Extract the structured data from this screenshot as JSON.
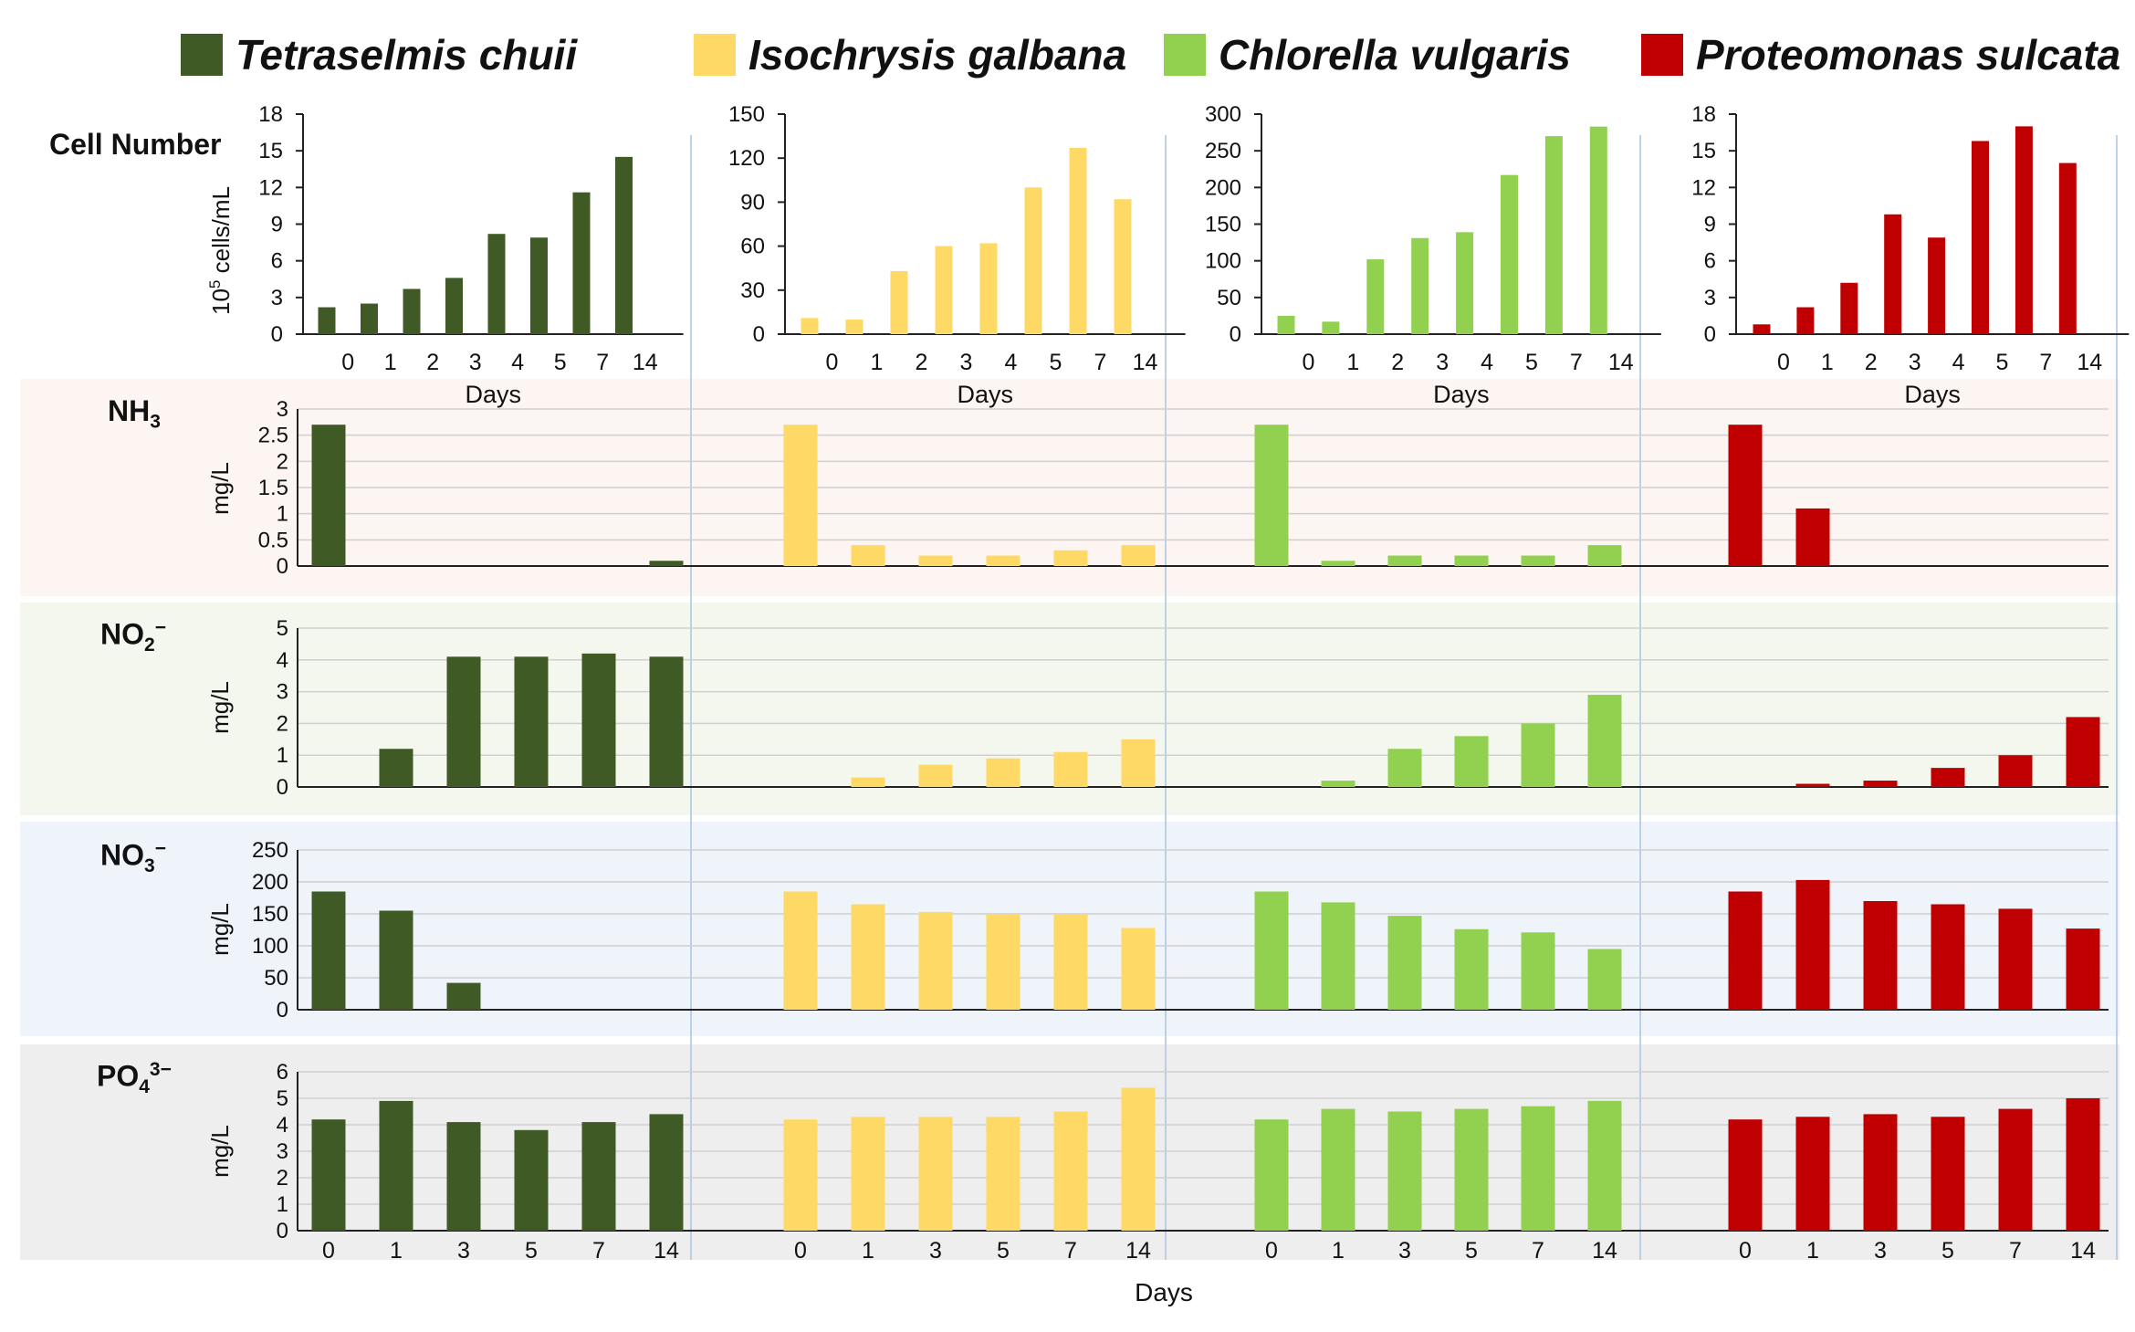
{
  "legend": [
    {
      "name": "Tetraselmis chuii",
      "color": "#3f5a24"
    },
    {
      "name": "Isochrysis galbana",
      "color": "#ffd966"
    },
    {
      "name": "Chlorella vulgaris",
      "color": "#92d050"
    },
    {
      "name": "Proteomonas sulcata",
      "color": "#c00000"
    }
  ],
  "row_titles": {
    "cell": "Cell Number",
    "nh3_main": "NH",
    "nh3_sub": "3",
    "no2_main": "NO",
    "no2_sub": "2",
    "no2_sup": "−",
    "no3_main": "NO",
    "no3_sub": "3",
    "no3_sup": "−",
    "po4_main": "PO",
    "po4_sub": "4",
    "po4_sup": "3−"
  },
  "footer_xlabel": "Days",
  "chart_data": [
    {
      "type": "bar",
      "panel": "cell-number",
      "species": "Tetraselmis chuii",
      "color": "#3f5a24",
      "categories": [
        "",
        "0",
        "1",
        "2",
        "3",
        "4",
        "5",
        "7",
        "14"
      ],
      "values": [
        2.2,
        2.5,
        3.7,
        4.6,
        8.2,
        7.9,
        11.6,
        14.5,
        null
      ],
      "yticks": [
        0,
        3,
        6,
        9,
        12,
        15,
        18
      ],
      "ylim": [
        0,
        18
      ],
      "ylabel_base": "10",
      "ylabel_exp": "5",
      "ylabel_rest": " cells/mL",
      "xlabel": "Days"
    },
    {
      "type": "bar",
      "panel": "cell-number",
      "species": "Isochrysis galbana",
      "color": "#ffd966",
      "categories": [
        "",
        "0",
        "1",
        "2",
        "3",
        "4",
        "5",
        "7",
        "14"
      ],
      "values": [
        11,
        10,
        43,
        60,
        62,
        100,
        127,
        92,
        null
      ],
      "yticks": [
        0,
        30,
        60,
        90,
        120,
        150
      ],
      "ylim": [
        0,
        150
      ],
      "xlabel": "Days"
    },
    {
      "type": "bar",
      "panel": "cell-number",
      "species": "Chlorella vulgaris",
      "color": "#92d050",
      "categories": [
        "",
        "0",
        "1",
        "2",
        "3",
        "4",
        "5",
        "7",
        "14"
      ],
      "values": [
        25,
        17,
        102,
        131,
        139,
        217,
        270,
        283,
        null
      ],
      "yticks": [
        0,
        50,
        100,
        150,
        200,
        250,
        300
      ],
      "ylim": [
        0,
        300
      ],
      "xlabel": "Days"
    },
    {
      "type": "bar",
      "panel": "cell-number",
      "species": "Proteomonas sulcata",
      "color": "#c00000",
      "categories": [
        "",
        "0",
        "1",
        "2",
        "3",
        "4",
        "5",
        "7",
        "14"
      ],
      "values": [
        0.8,
        2.2,
        4.2,
        9.8,
        7.9,
        15.8,
        17,
        14,
        null
      ],
      "yticks": [
        0,
        3,
        6,
        9,
        12,
        15,
        18
      ],
      "ylim": [
        0,
        18
      ],
      "xlabel": "Days"
    },
    {
      "type": "bar",
      "panel": "nh3",
      "categories": [
        "0",
        "1",
        "3",
        "5",
        "7",
        "14"
      ],
      "yticks": [
        "0",
        "0.5",
        "1",
        "1.5",
        "2",
        "2.5",
        "3"
      ],
      "ylim": [
        0,
        3
      ],
      "ylabel": "mg/L",
      "series": [
        {
          "name": "Tetraselmis chuii",
          "values": [
            2.7,
            0,
            0,
            0,
            0,
            0.1
          ]
        },
        {
          "name": "Isochrysis galbana",
          "values": [
            2.7,
            0.4,
            0.2,
            0.2,
            0.3,
            0.4
          ]
        },
        {
          "name": "Chlorella vulgaris",
          "values": [
            2.7,
            0.1,
            0.2,
            0.2,
            0.2,
            0.4
          ]
        },
        {
          "name": "Proteomonas sulcata",
          "values": [
            2.7,
            1.1,
            0,
            0,
            0,
            0
          ]
        }
      ]
    },
    {
      "type": "bar",
      "panel": "no2",
      "categories": [
        "0",
        "1",
        "3",
        "5",
        "7",
        "14"
      ],
      "yticks": [
        "0",
        "1",
        "2",
        "3",
        "4",
        "5"
      ],
      "ylim": [
        0,
        5
      ],
      "ylabel": "mg/L",
      "series": [
        {
          "name": "Tetraselmis chuii",
          "values": [
            0,
            1.2,
            4.1,
            4.1,
            4.2,
            4.1
          ]
        },
        {
          "name": "Isochrysis galbana",
          "values": [
            0,
            0.3,
            0.7,
            0.9,
            1.1,
            1.5
          ]
        },
        {
          "name": "Chlorella vulgaris",
          "values": [
            0,
            0.2,
            1.2,
            1.6,
            2.0,
            2.9
          ]
        },
        {
          "name": "Proteomonas sulcata",
          "values": [
            0,
            0.1,
            0.2,
            0.6,
            1.0,
            2.2
          ]
        }
      ]
    },
    {
      "type": "bar",
      "panel": "no3",
      "categories": [
        "0",
        "1",
        "3",
        "5",
        "7",
        "14"
      ],
      "yticks": [
        "0",
        "50",
        "100",
        "150",
        "200",
        "250"
      ],
      "ylim": [
        0,
        250
      ],
      "ylabel": "mg/L",
      "series": [
        {
          "name": "Tetraselmis chuii",
          "values": [
            185,
            155,
            42,
            0,
            0,
            0
          ]
        },
        {
          "name": "Isochrysis galbana",
          "values": [
            185,
            165,
            153,
            150,
            150,
            128
          ]
        },
        {
          "name": "Chlorella vulgaris",
          "values": [
            185,
            168,
            147,
            126,
            121,
            95
          ]
        },
        {
          "name": "Proteomonas sulcata",
          "values": [
            185,
            203,
            170,
            165,
            158,
            127
          ]
        }
      ]
    },
    {
      "type": "bar",
      "panel": "po4",
      "categories": [
        "0",
        "1",
        "3",
        "5",
        "7",
        "14"
      ],
      "yticks": [
        "0",
        "1",
        "2",
        "3",
        "4",
        "5",
        "6"
      ],
      "ylim": [
        0,
        6
      ],
      "ylabel": "mg/L",
      "series": [
        {
          "name": "Tetraselmis chuii",
          "values": [
            4.2,
            4.9,
            4.1,
            3.8,
            4.1,
            4.4
          ]
        },
        {
          "name": "Isochrysis galbana",
          "values": [
            4.2,
            4.3,
            4.3,
            4.3,
            4.5,
            5.4
          ]
        },
        {
          "name": "Chlorella vulgaris",
          "values": [
            4.2,
            4.6,
            4.5,
            4.6,
            4.7,
            4.9
          ]
        },
        {
          "name": "Proteomonas sulcata",
          "values": [
            4.2,
            4.3,
            4.4,
            4.3,
            4.6,
            5.0
          ]
        }
      ]
    }
  ]
}
